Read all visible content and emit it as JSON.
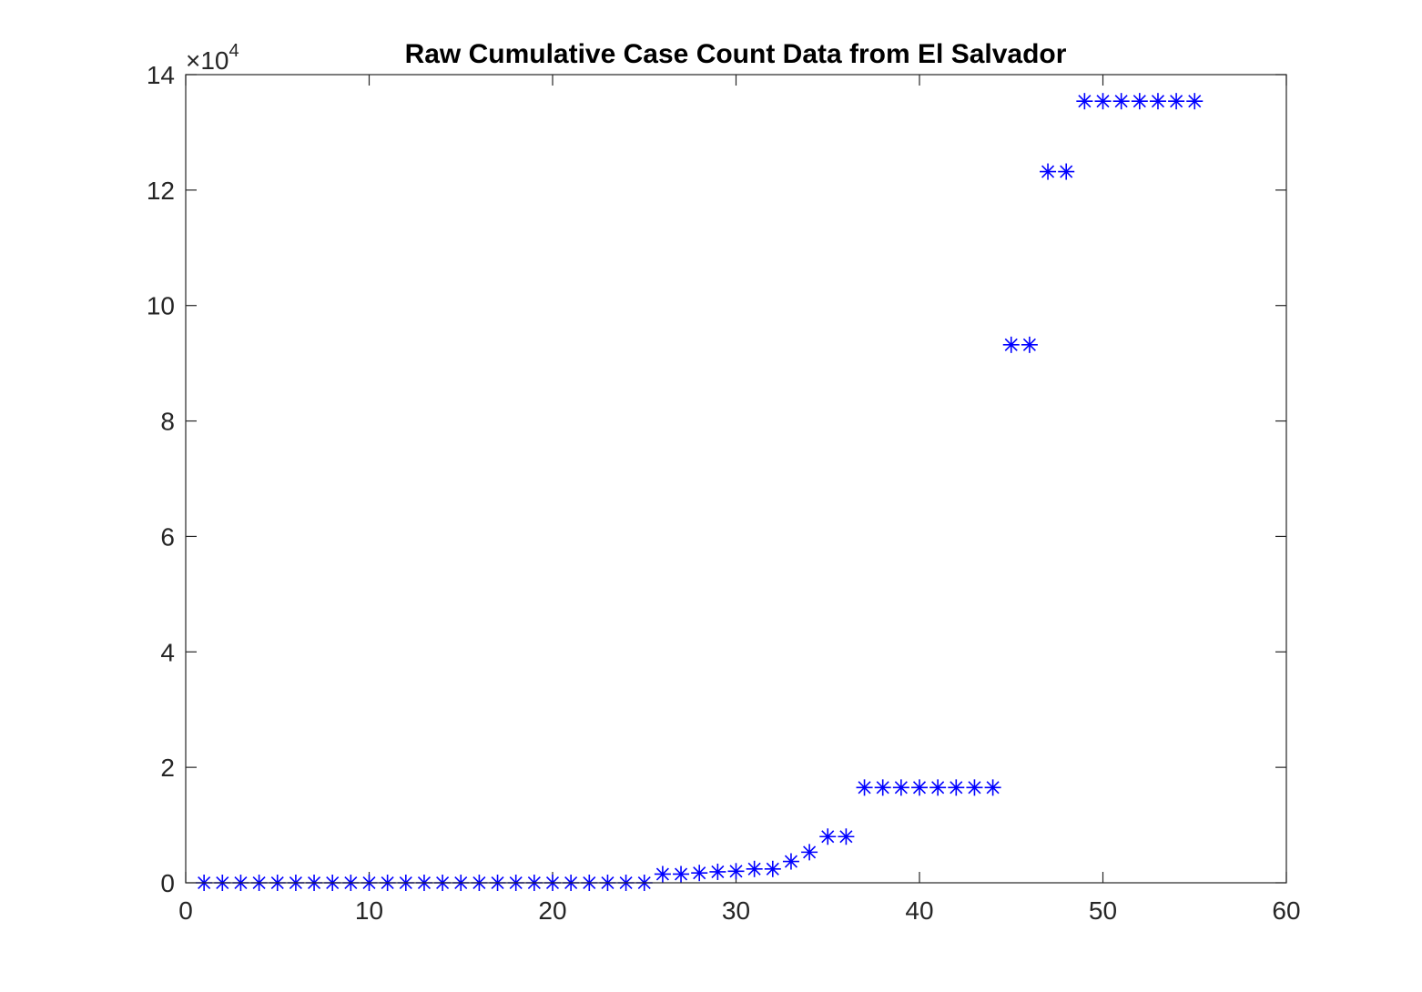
{
  "chart_data": {
    "type": "scatter",
    "title": "Raw Cumulative Case Count Data from El Salvador",
    "xlabel": "",
    "ylabel": "",
    "xlim": [
      0,
      60
    ],
    "ylim": [
      0,
      140000
    ],
    "x_ticks": [
      0,
      10,
      20,
      30,
      40,
      50,
      60
    ],
    "x_tick_labels": [
      "0",
      "10",
      "20",
      "30",
      "40",
      "50",
      "60"
    ],
    "y_ticks": [
      0,
      20000,
      40000,
      60000,
      80000,
      100000,
      120000,
      140000
    ],
    "y_tick_labels": [
      "0",
      "2",
      "4",
      "6",
      "8",
      "10",
      "12",
      "14"
    ],
    "y_exponent_label": "×10",
    "y_exponent_power": "4",
    "grid": false,
    "marker": "asterisk",
    "series": [
      {
        "color": "#0000ff",
        "x": [
          1,
          2,
          3,
          4,
          5,
          6,
          7,
          8,
          9,
          10,
          11,
          12,
          13,
          14,
          15,
          16,
          17,
          18,
          19,
          20,
          21,
          22,
          23,
          24,
          25,
          26,
          27,
          28,
          29,
          30,
          31,
          32,
          33,
          34,
          35,
          36,
          37,
          38,
          39,
          40,
          41,
          42,
          43,
          44,
          45,
          46,
          47,
          48,
          49,
          50,
          51,
          52,
          53,
          54,
          55
        ],
        "y": [
          0,
          0,
          0,
          0,
          0,
          0,
          0,
          0,
          0,
          0,
          0,
          0,
          0,
          0,
          0,
          0,
          0,
          0,
          0,
          0,
          0,
          0,
          0,
          0,
          0,
          1500,
          1500,
          1700,
          1900,
          2000,
          2400,
          2400,
          3700,
          5300,
          8000,
          8000,
          16500,
          16500,
          16500,
          16500,
          16500,
          16500,
          16500,
          16500,
          93200,
          93200,
          123200,
          123200,
          135400,
          135400,
          135400,
          135400,
          135400,
          135400,
          135400
        ]
      }
    ]
  }
}
